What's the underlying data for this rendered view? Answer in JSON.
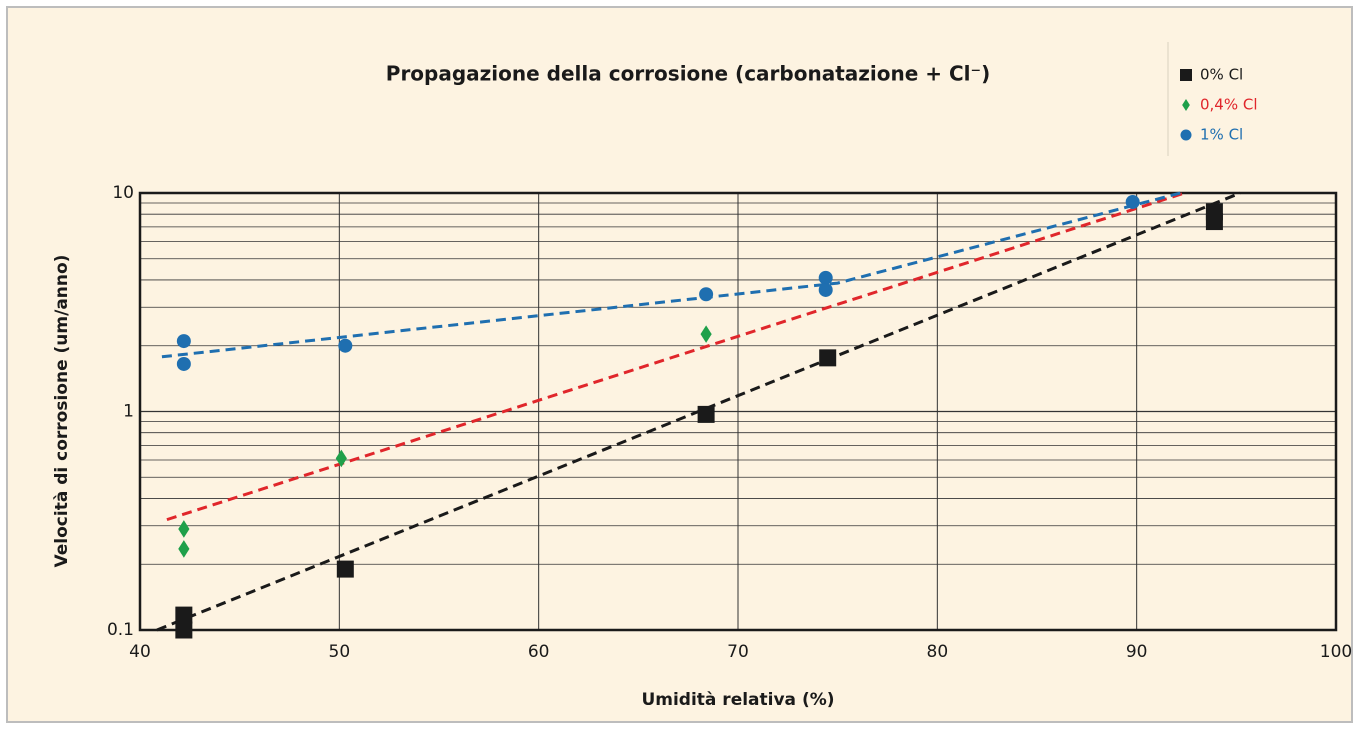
{
  "chart_data": {
    "type": "scatter",
    "title": "Propagazione della corrosione (carbonatazione + Cl⁻)",
    "x_label": "Umidità relativa (%)",
    "y_label": "Velocità di corrosione (um/anno)",
    "xlim": [
      40,
      100
    ],
    "xticks": [
      40,
      50,
      60,
      70,
      80,
      90,
      100
    ],
    "ylim": [
      0.1,
      10
    ],
    "yscale": "log",
    "yticks": [
      0.1,
      1,
      10
    ],
    "yminor": [
      0.2,
      0.3,
      0.4,
      0.5,
      0.6,
      0.7,
      0.8,
      0.9,
      2,
      3,
      4,
      5,
      6,
      7,
      8,
      9
    ],
    "grid": true,
    "legend": "top-right",
    "series": [
      {
        "name": "0% Cl",
        "color": "#1a1a1a",
        "label_color": "#1a1a1a",
        "marker": "square",
        "x": [
          42.2,
          42.2,
          50.3,
          68.4,
          74.5,
          93.9,
          93.9
        ],
        "values": [
          0.1,
          0.117,
          0.19,
          0.97,
          1.76,
          7.4,
          8.2
        ]
      },
      {
        "name": "0,4% Cl",
        "color": "#1fa04a",
        "label_color": "#e0262b",
        "marker": "diamond",
        "x": [
          42.2,
          42.2,
          50.1,
          68.4
        ],
        "values": [
          0.29,
          0.235,
          0.61,
          2.26
        ]
      },
      {
        "name": "1% Cl",
        "color": "#1f6fb0",
        "label_color": "#1f6fb0",
        "marker": "circle",
        "x": [
          42.2,
          42.2,
          50.3,
          68.4,
          74.4,
          74.4,
          89.8
        ],
        "values": [
          2.1,
          1.65,
          2.0,
          3.44,
          4.09,
          3.6,
          9.1
        ]
      }
    ],
    "trendlines": [
      {
        "color": "#1a1a1a",
        "x": [
          40.85,
          95.2
        ],
        "values": [
          0.1,
          10
        ]
      },
      {
        "color": "#e0262b",
        "x": [
          41.35,
          92.4
        ],
        "values": [
          0.32,
          10
        ]
      },
      {
        "color": "#1f6fb0",
        "x": [
          41.1,
          75.0,
          92.2
        ],
        "values": [
          1.78,
          3.87,
          10
        ]
      }
    ]
  }
}
